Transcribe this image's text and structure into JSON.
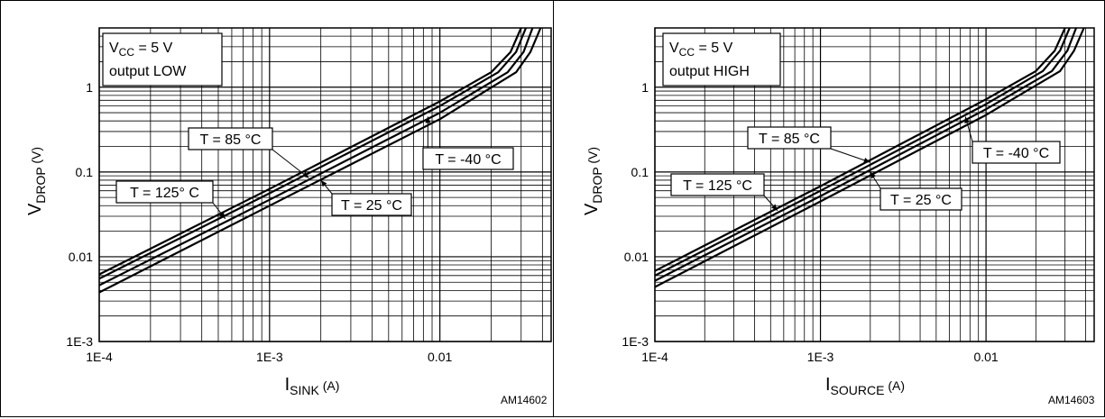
{
  "chart_data": [
    {
      "type": "line",
      "x_scale": "log",
      "y_scale": "log",
      "xlim": [
        0.0001,
        0.045
      ],
      "ylim": [
        0.001,
        5
      ],
      "grid": true,
      "xticks": [
        "1E-4",
        "1E-3",
        "0.01"
      ],
      "yticks": [
        "1E-3",
        "0.01",
        "0.1",
        "1"
      ],
      "xlabel": {
        "main": "I",
        "sub": "SINK",
        "unit": " (A)"
      },
      "ylabel": {
        "main": "V",
        "sub": "DROP",
        "unit": " (V)"
      },
      "conditions": {
        "line1_main": "V",
        "line1_sub": "CC",
        "line1_rest": " = 5 V",
        "line2": "output LOW"
      },
      "figure_id": "AM14602",
      "series": [
        {
          "name": "T = 125° C",
          "x": [
            0.0001,
            0.001,
            0.01,
            0.02,
            0.026,
            0.03
          ],
          "y": [
            0.0062,
            0.063,
            0.68,
            1.5,
            2.6,
            5
          ]
        },
        {
          "name": "T = 85 °C",
          "x": [
            0.0001,
            0.001,
            0.01,
            0.022,
            0.028,
            0.032
          ],
          "y": [
            0.0055,
            0.056,
            0.6,
            1.5,
            2.6,
            5
          ]
        },
        {
          "name": "T = 25 °C",
          "x": [
            0.0001,
            0.001,
            0.01,
            0.025,
            0.031,
            0.035
          ],
          "y": [
            0.0046,
            0.047,
            0.5,
            1.5,
            2.6,
            5
          ]
        },
        {
          "name": "T = -40 °C",
          "x": [
            0.0001,
            0.001,
            0.01,
            0.028,
            0.034,
            0.039
          ],
          "y": [
            0.0038,
            0.04,
            0.42,
            1.5,
            2.6,
            5
          ]
        }
      ],
      "annotations": [
        {
          "text": "T = 85 °C",
          "series": 1,
          "point": [
            0.0017,
            0.085
          ]
        },
        {
          "text": "T = 125° C",
          "series": 0,
          "point": [
            0.00055,
            0.028
          ]
        },
        {
          "text": "T = 25 °C",
          "series": 2,
          "point": [
            0.002,
            0.08
          ]
        },
        {
          "text": "T = -40 °C",
          "series": 3,
          "point": [
            0.0085,
            0.45
          ]
        }
      ]
    },
    {
      "type": "line",
      "x_scale": "log",
      "y_scale": "log",
      "xlim": [
        0.0001,
        0.045
      ],
      "ylim": [
        0.001,
        5
      ],
      "grid": true,
      "xticks": [
        "1E-4",
        "1E-3",
        "0.01"
      ],
      "yticks": [
        "1E-3",
        "0.01",
        "0.1",
        "1"
      ],
      "xlabel": {
        "main": "I",
        "sub": "SOURCE",
        "unit": " (A)"
      },
      "ylabel": {
        "main": "V",
        "sub": "DROP",
        "unit": " (V)"
      },
      "conditions": {
        "line1_main": "V",
        "line1_sub": "CC",
        "line1_rest": " = 5 V",
        "line2": "output HIGH"
      },
      "figure_id": "AM14603",
      "series": [
        {
          "name": "T = 125 °C",
          "x": [
            0.0001,
            0.001,
            0.01,
            0.02,
            0.026,
            0.03
          ],
          "y": [
            0.0068,
            0.068,
            0.72,
            1.55,
            2.7,
            5
          ]
        },
        {
          "name": "T = 85 °C",
          "x": [
            0.0001,
            0.001,
            0.01,
            0.022,
            0.028,
            0.032
          ],
          "y": [
            0.006,
            0.06,
            0.63,
            1.55,
            2.7,
            5
          ]
        },
        {
          "name": "T = 25 °C",
          "x": [
            0.0001,
            0.001,
            0.01,
            0.025,
            0.031,
            0.035
          ],
          "y": [
            0.0052,
            0.052,
            0.55,
            1.55,
            2.7,
            5
          ]
        },
        {
          "name": "T = -40 °C",
          "x": [
            0.0001,
            0.001,
            0.01,
            0.028,
            0.034,
            0.039
          ],
          "y": [
            0.0044,
            0.045,
            0.47,
            1.55,
            2.7,
            5
          ]
        }
      ],
      "annotations": [
        {
          "text": "T = 85 °C",
          "series": 1,
          "point": [
            0.002,
            0.13
          ]
        },
        {
          "text": "T = 125 °C",
          "series": 0,
          "point": [
            0.00055,
            0.035
          ]
        },
        {
          "text": "T = 25 °C",
          "series": 2,
          "point": [
            0.002,
            0.1
          ]
        },
        {
          "text": "T = -40 °C",
          "series": 3,
          "point": [
            0.0075,
            0.45
          ]
        }
      ]
    }
  ]
}
